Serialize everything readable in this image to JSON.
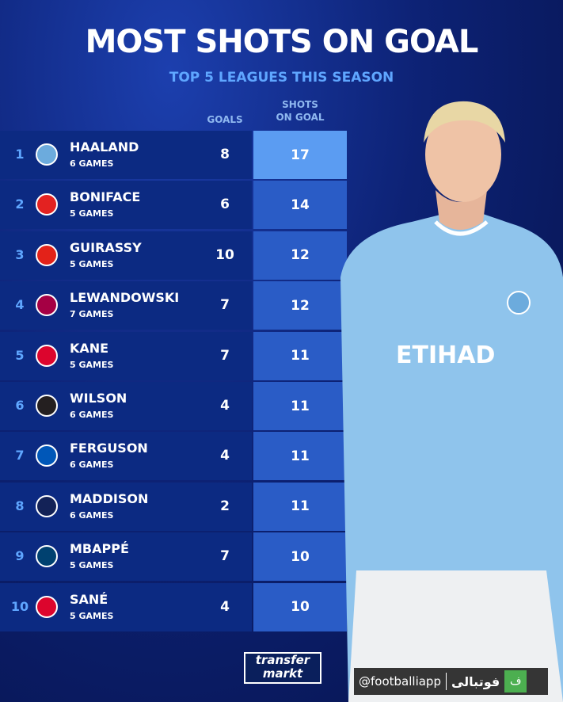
{
  "title": "MOST SHOTS ON GOAL",
  "subtitle": "TOP 5 LEAGUES THIS SEASON",
  "headers": {
    "goals": "GOALS",
    "shots_line1": "SHOTS",
    "shots_line2": "ON GOAL"
  },
  "rows": [
    {
      "rank": "1",
      "name": "HAALAND",
      "games": "6 GAMES",
      "goals": "8",
      "shots": "17",
      "club_color": "#6cabdd"
    },
    {
      "rank": "2",
      "name": "BONIFACE",
      "games": "5 GAMES",
      "goals": "6",
      "shots": "14",
      "club_color": "#e32221"
    },
    {
      "rank": "3",
      "name": "GUIRASSY",
      "games": "5 GAMES",
      "goals": "10",
      "shots": "12",
      "club_color": "#e32219"
    },
    {
      "rank": "4",
      "name": "LEWANDOWSKI",
      "games": "7 GAMES",
      "goals": "7",
      "shots": "12",
      "club_color": "#a50044"
    },
    {
      "rank": "5",
      "name": "KANE",
      "games": "5 GAMES",
      "goals": "7",
      "shots": "11",
      "club_color": "#dc052d"
    },
    {
      "rank": "6",
      "name": "WILSON",
      "games": "6 GAMES",
      "goals": "4",
      "shots": "11",
      "club_color": "#241f20"
    },
    {
      "rank": "7",
      "name": "FERGUSON",
      "games": "6 GAMES",
      "goals": "4",
      "shots": "11",
      "club_color": "#0057b8"
    },
    {
      "rank": "8",
      "name": "MADDISON",
      "games": "6 GAMES",
      "goals": "2",
      "shots": "11",
      "club_color": "#132257"
    },
    {
      "rank": "9",
      "name": "MBAPPÉ",
      "games": "5 GAMES",
      "goals": "7",
      "shots": "10",
      "club_color": "#004170"
    },
    {
      "rank": "10",
      "name": "SANÉ",
      "games": "5 GAMES",
      "goals": "4",
      "shots": "10",
      "club_color": "#dc052d"
    }
  ],
  "branding": {
    "logo_line1": "transfer",
    "logo_line2": "markt",
    "watermark_handle": "@footballiapp",
    "watermark_name": "فوتبالی",
    "watermark_icon": "ف"
  },
  "colors": {
    "row_bg": "#0c2a82",
    "shots_bg": "#2a5cc6",
    "shots_highlight": "#5b9cf2",
    "accent": "#5fa6ff"
  }
}
